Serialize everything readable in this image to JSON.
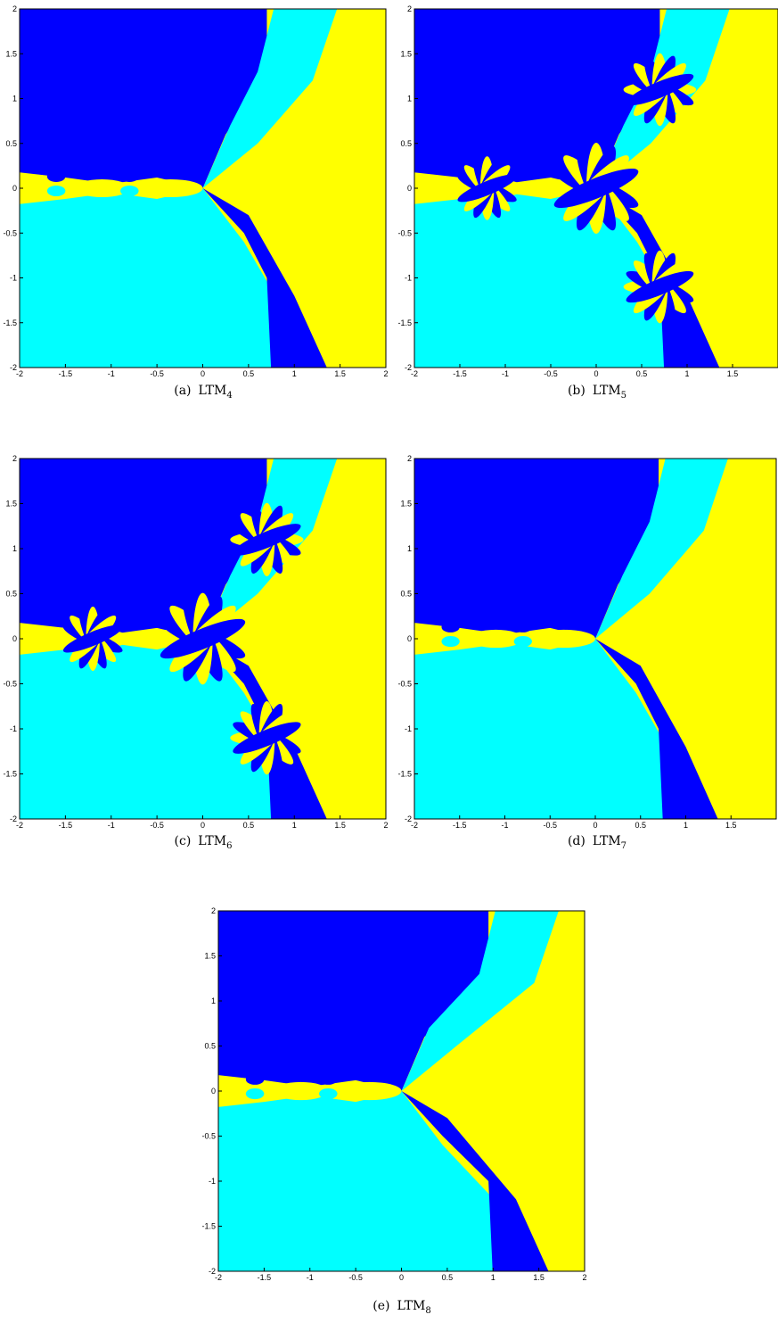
{
  "figures": [
    {
      "label": "(a)",
      "method": "LTM",
      "subscript": "4",
      "xlim": [
        -2,
        2
      ],
      "ylim": [
        -2,
        2
      ],
      "xticks": [
        -2,
        -1.5,
        -1,
        -0.5,
        0,
        0.5,
        1,
        1.5,
        2
      ],
      "yticks": [
        -2,
        -1.5,
        -1,
        -0.5,
        0,
        0.5,
        1,
        1.5,
        2
      ]
    },
    {
      "label": "(b)",
      "method": "LTM",
      "subscript": "5",
      "xlim": [
        -2,
        2
      ],
      "ylim": [
        -2,
        2
      ],
      "xticks": [
        -2,
        -1.5,
        -1,
        -0.5,
        0,
        0.5,
        1,
        1.5
      ],
      "yticks": [
        -2,
        -1.5,
        -1,
        -0.5,
        0,
        0.5,
        1,
        1.5,
        2
      ]
    },
    {
      "label": "(c)",
      "method": "LTM",
      "subscript": "6",
      "xlim": [
        -2,
        2
      ],
      "ylim": [
        -2,
        2
      ],
      "xticks": [
        -2,
        -1.5,
        -1,
        -0.5,
        0,
        0.5,
        1,
        1.5,
        2
      ],
      "yticks": [
        -2,
        -1.5,
        -1,
        -0.5,
        0,
        0.5,
        1,
        1.5,
        2
      ]
    },
    {
      "label": "(d)",
      "method": "LTM",
      "subscript": "7",
      "xlim": [
        -2,
        2
      ],
      "ylim": [
        -2,
        2
      ],
      "xticks": [
        -2,
        -1.5,
        -1,
        -0.5,
        0,
        0.5,
        1,
        1.5
      ],
      "yticks": [
        -2,
        -1.5,
        -1,
        -0.5,
        0,
        0.5,
        1,
        1.5,
        2
      ]
    },
    {
      "label": "(e)",
      "method": "LTM",
      "subscript": "8",
      "xlim": [
        -2,
        2
      ],
      "ylim": [
        -2,
        2
      ],
      "xticks": [
        -2,
        -1.5,
        -1,
        -0.5,
        0,
        0.5,
        1,
        1.5,
        2
      ],
      "yticks": [
        -2,
        -1.5,
        -1,
        -0.5,
        0,
        0.5,
        1,
        1.5,
        2
      ]
    }
  ]
}
